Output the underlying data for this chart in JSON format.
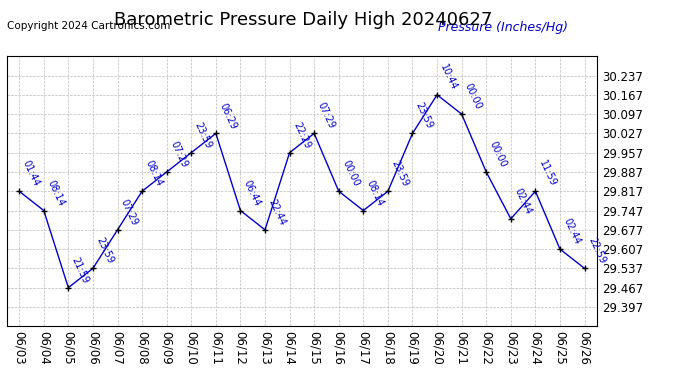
{
  "title": "Barometric Pressure Daily High 20240627",
  "copyright": "Copyright 2024 Cartronics.com",
  "ylabel": "Pressure (Inches/Hg)",
  "dates": [
    "06/03",
    "06/04",
    "06/05",
    "06/06",
    "06/07",
    "06/08",
    "06/09",
    "06/10",
    "06/11",
    "06/12",
    "06/13",
    "06/14",
    "06/15",
    "06/16",
    "06/17",
    "06/18",
    "06/19",
    "06/20",
    "06/21",
    "06/22",
    "06/23",
    "06/24",
    "06/25",
    "06/26"
  ],
  "values": [
    29.817,
    29.747,
    29.467,
    29.537,
    29.677,
    29.817,
    29.887,
    29.957,
    30.027,
    29.747,
    29.677,
    29.957,
    30.027,
    29.817,
    29.747,
    29.817,
    30.027,
    30.167,
    30.097,
    29.887,
    29.717,
    29.817,
    29.607,
    29.537
  ],
  "annotations": [
    "01:44",
    "08:14",
    "21:59",
    "23:59",
    "07:29",
    "08:14",
    "07:29",
    "23:59",
    "06:29",
    "06:44",
    "22:44",
    "22:29",
    "07:29",
    "00:00",
    "08:14",
    "23:59",
    "23:59",
    "10:44",
    "00:00",
    "00:00",
    "02:44",
    "11:59",
    "02:44",
    "22:59"
  ],
  "ylim_min": 29.327,
  "ylim_max": 30.307,
  "yticks": [
    29.397,
    29.467,
    29.537,
    29.607,
    29.677,
    29.747,
    29.817,
    29.887,
    29.957,
    30.027,
    30.097,
    30.167,
    30.237
  ],
  "line_color": "#0000cc",
  "marker_color": "#000000",
  "annotation_color": "#0000cc",
  "title_color": "#000000",
  "copyright_color": "#000000",
  "ylabel_color": "#0000cc",
  "background_color": "#ffffff",
  "grid_color": "#bbbbbb",
  "title_fontsize": 13,
  "label_fontsize": 9,
  "tick_fontsize": 8.5,
  "annot_fontsize": 7
}
